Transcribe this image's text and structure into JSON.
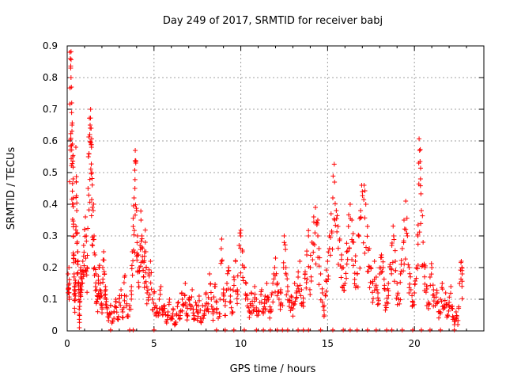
{
  "chart_data": {
    "type": "scatter",
    "title": "Day 249 of 2017, SRMTID for receiver babj",
    "xlabel": "GPS time / hours",
    "ylabel": "SRMTID / TECUs",
    "xlim": [
      0,
      24
    ],
    "ylim": [
      0,
      0.9
    ],
    "xticks": [
      0,
      5,
      10,
      15,
      20
    ],
    "yticks": [
      0,
      0.1,
      0.2,
      0.3,
      0.4,
      0.5,
      0.6,
      0.7,
      0.8,
      0.9
    ],
    "grid": true,
    "marker": "+",
    "series": [
      {
        "name": "SRMTID",
        "color": "#ff0000",
        "points": [
          [
            0.05,
            0.18
          ],
          [
            0.08,
            0.12
          ],
          [
            0.1,
            0.2
          ],
          [
            0.12,
            0.15
          ],
          [
            0.15,
            0.88
          ],
          [
            0.18,
            0.86
          ],
          [
            0.2,
            0.83
          ],
          [
            0.22,
            0.8
          ],
          [
            0.24,
            0.77
          ],
          [
            0.26,
            0.72
          ],
          [
            0.28,
            0.65
          ],
          [
            0.3,
            0.59
          ],
          [
            0.32,
            0.55
          ],
          [
            0.34,
            0.48
          ],
          [
            0.35,
            0.4
          ],
          [
            0.36,
            0.3
          ],
          [
            0.38,
            0.24
          ],
          [
            0.4,
            0.18
          ],
          [
            0.42,
            0.13
          ],
          [
            0.44,
            0.1
          ],
          [
            0.46,
            0.16
          ],
          [
            0.48,
            0.22
          ],
          [
            0.5,
            0.58
          ],
          [
            0.52,
            0.47
          ],
          [
            0.55,
            0.38
          ],
          [
            0.58,
            0.31
          ],
          [
            0.6,
            0.25
          ],
          [
            0.62,
            0.21
          ],
          [
            0.65,
            0.15
          ],
          [
            0.68,
            0.12
          ],
          [
            0.7,
            0.01
          ],
          [
            0.72,
            0.09
          ],
          [
            0.75,
            0.14
          ],
          [
            0.78,
            0.2
          ],
          [
            0.8,
            0.18
          ],
          [
            0.85,
            0.15
          ],
          [
            0.9,
            0.22
          ],
          [
            0.95,
            0.27
          ],
          [
            1.0,
            0.32
          ],
          [
            1.05,
            0.36
          ],
          [
            1.1,
            0.3
          ],
          [
            1.15,
            0.2
          ],
          [
            1.2,
            0.45
          ],
          [
            1.25,
            0.56
          ],
          [
            1.3,
            0.62
          ],
          [
            1.32,
            0.65
          ],
          [
            1.35,
            0.7
          ],
          [
            1.38,
            0.64
          ],
          [
            1.4,
            0.58
          ],
          [
            1.42,
            0.5
          ],
          [
            1.45,
            0.39
          ],
          [
            1.5,
            0.38
          ],
          [
            1.55,
            0.3
          ],
          [
            1.6,
            0.24
          ],
          [
            1.65,
            0.18
          ],
          [
            1.7,
            0.13
          ],
          [
            1.75,
            0.1
          ],
          [
            1.8,
            0.16
          ],
          [
            1.85,
            0.2
          ],
          [
            1.9,
            0.15
          ],
          [
            1.95,
            0.12
          ],
          [
            2.0,
            0.08
          ],
          [
            2.05,
            0.2
          ],
          [
            2.1,
            0.25
          ],
          [
            2.15,
            0.18
          ],
          [
            2.2,
            0.14
          ],
          [
            2.25,
            0.1
          ],
          [
            2.3,
            0.07
          ],
          [
            2.4,
            0.05
          ],
          [
            2.5,
            0.08
          ],
          [
            2.6,
            0.03
          ],
          [
            2.7,
            0.06
          ],
          [
            2.8,
            0.1
          ],
          [
            2.9,
            0.04
          ],
          [
            3.0,
            0.09
          ],
          [
            3.1,
            0.13
          ],
          [
            3.2,
            0.06
          ],
          [
            3.3,
            0.17
          ],
          [
            3.4,
            0.11
          ],
          [
            3.5,
            0.05
          ],
          [
            3.6,
            0.08
          ],
          [
            3.7,
            0.14
          ],
          [
            3.75,
            0.25
          ],
          [
            3.8,
            0.33
          ],
          [
            3.85,
            0.42
          ],
          [
            3.9,
            0.45
          ],
          [
            3.92,
            0.57
          ],
          [
            3.95,
            0.53
          ],
          [
            4.0,
            0.38
          ],
          [
            4.05,
            0.3
          ],
          [
            4.1,
            0.24
          ],
          [
            4.15,
            0.2
          ],
          [
            4.2,
            0.27
          ],
          [
            4.25,
            0.35
          ],
          [
            4.3,
            0.3
          ],
          [
            4.35,
            0.22
          ],
          [
            4.4,
            0.17
          ],
          [
            4.45,
            0.25
          ],
          [
            4.5,
            0.28
          ],
          [
            4.55,
            0.2
          ],
          [
            4.6,
            0.12
          ],
          [
            4.7,
            0.18
          ],
          [
            4.8,
            0.22
          ],
          [
            4.9,
            0.1
          ],
          [
            5.0,
            0.12
          ],
          [
            5.1,
            0.08
          ],
          [
            5.2,
            0.06
          ],
          [
            5.3,
            0.1
          ],
          [
            5.4,
            0.14
          ],
          [
            5.5,
            0.05
          ],
          [
            5.6,
            0.08
          ],
          [
            5.7,
            0.03
          ],
          [
            5.8,
            0.06
          ],
          [
            5.9,
            0.1
          ],
          [
            6.0,
            0.04
          ],
          [
            6.1,
            0.07
          ],
          [
            6.2,
            0.02
          ],
          [
            6.3,
            0.05
          ],
          [
            6.4,
            0.09
          ],
          [
            6.5,
            0.06
          ],
          [
            6.6,
            0.12
          ],
          [
            6.7,
            0.08
          ],
          [
            6.8,
            0.15
          ],
          [
            6.9,
            0.05
          ],
          [
            7.0,
            0.1
          ],
          [
            7.1,
            0.07
          ],
          [
            7.2,
            0.13
          ],
          [
            7.3,
            0.04
          ],
          [
            7.4,
            0.09
          ],
          [
            7.5,
            0.06
          ],
          [
            7.6,
            0.11
          ],
          [
            7.7,
            0.03
          ],
          [
            7.8,
            0.08
          ],
          [
            7.9,
            0.05
          ],
          [
            8.0,
            0.12
          ],
          [
            8.1,
            0.07
          ],
          [
            8.2,
            0.18
          ],
          [
            8.3,
            0.1
          ],
          [
            8.4,
            0.06
          ],
          [
            8.5,
            0.14
          ],
          [
            8.6,
            0.09
          ],
          [
            8.7,
            0.04
          ],
          [
            8.8,
            0.1
          ],
          [
            8.9,
            0.29
          ],
          [
            9.0,
            0.12
          ],
          [
            9.1,
            0.08
          ],
          [
            9.2,
            0.15
          ],
          [
            9.3,
            0.2
          ],
          [
            9.4,
            0.11
          ],
          [
            9.5,
            0.06
          ],
          [
            9.6,
            0.17
          ],
          [
            9.7,
            0.22
          ],
          [
            9.8,
            0.13
          ],
          [
            9.9,
            0.27
          ],
          [
            10.0,
            0.3
          ],
          [
            10.1,
            0.25
          ],
          [
            10.2,
            0.2
          ],
          [
            10.3,
            0.15
          ],
          [
            10.4,
            0.1
          ],
          [
            10.5,
            0.06
          ],
          [
            10.6,
            0.12
          ],
          [
            10.7,
            0.08
          ],
          [
            10.8,
            0.14
          ],
          [
            10.9,
            0.1
          ],
          [
            11.0,
            0.05
          ],
          [
            11.1,
            0.09
          ],
          [
            11.2,
            0.13
          ],
          [
            11.3,
            0.07
          ],
          [
            11.4,
            0.11
          ],
          [
            11.5,
            0.15
          ],
          [
            11.6,
            0.1
          ],
          [
            11.7,
            0.06
          ],
          [
            11.8,
            0.12
          ],
          [
            11.9,
            0.18
          ],
          [
            12.0,
            0.23
          ],
          [
            12.1,
            0.15
          ],
          [
            12.2,
            0.1
          ],
          [
            12.3,
            0.13
          ],
          [
            12.4,
            0.08
          ],
          [
            12.5,
            0.3
          ],
          [
            12.6,
            0.2
          ],
          [
            12.7,
            0.14
          ],
          [
            12.8,
            0.09
          ],
          [
            12.9,
            0.11
          ],
          [
            13.0,
            0.07
          ],
          [
            13.1,
            0.15
          ],
          [
            13.2,
            0.12
          ],
          [
            13.3,
            0.17
          ],
          [
            13.4,
            0.22
          ],
          [
            13.5,
            0.13
          ],
          [
            13.6,
            0.09
          ],
          [
            13.7,
            0.18
          ],
          [
            13.8,
            0.24
          ],
          [
            13.9,
            0.3
          ],
          [
            14.0,
            0.2
          ],
          [
            14.1,
            0.28
          ],
          [
            14.2,
            0.36
          ],
          [
            14.3,
            0.39
          ],
          [
            14.4,
            0.34
          ],
          [
            14.5,
            0.26
          ],
          [
            14.6,
            0.18
          ],
          [
            14.7,
            0.12
          ],
          [
            14.8,
            0.08
          ],
          [
            14.9,
            0.16
          ],
          [
            15.0,
            0.22
          ],
          [
            15.1,
            0.3
          ],
          [
            15.2,
            0.37
          ],
          [
            15.3,
            0.42
          ],
          [
            15.4,
            0.47
          ],
          [
            15.5,
            0.38
          ],
          [
            15.6,
            0.33
          ],
          [
            15.7,
            0.29
          ],
          [
            15.8,
            0.24
          ],
          [
            15.9,
            0.2
          ],
          [
            16.0,
            0.15
          ],
          [
            16.1,
            0.25
          ],
          [
            16.2,
            0.33
          ],
          [
            16.3,
            0.4
          ],
          [
            16.4,
            0.35
          ],
          [
            16.5,
            0.28
          ],
          [
            16.6,
            0.22
          ],
          [
            16.7,
            0.18
          ],
          [
            16.8,
            0.3
          ],
          [
            16.9,
            0.38
          ],
          [
            17.0,
            0.44
          ],
          [
            17.1,
            0.46
          ],
          [
            17.2,
            0.4
          ],
          [
            17.3,
            0.33
          ],
          [
            17.4,
            0.26
          ],
          [
            17.5,
            0.2
          ],
          [
            17.6,
            0.15
          ],
          [
            17.7,
            0.22
          ],
          [
            17.8,
            0.17
          ],
          [
            17.9,
            0.12
          ],
          [
            18.0,
            0.18
          ],
          [
            18.1,
            0.24
          ],
          [
            18.2,
            0.2
          ],
          [
            18.3,
            0.13
          ],
          [
            18.4,
            0.09
          ],
          [
            18.5,
            0.15
          ],
          [
            18.6,
            0.21
          ],
          [
            18.7,
            0.27
          ],
          [
            18.8,
            0.3
          ],
          [
            18.9,
            0.22
          ],
          [
            19.0,
            0.15
          ],
          [
            19.1,
            0.1
          ],
          [
            19.2,
            0.18
          ],
          [
            19.3,
            0.26
          ],
          [
            19.4,
            0.35
          ],
          [
            19.5,
            0.41
          ],
          [
            19.6,
            0.3
          ],
          [
            19.7,
            0.2
          ],
          [
            19.8,
            0.13
          ],
          [
            19.9,
            0.08
          ],
          [
            20.0,
            0.12
          ],
          [
            20.1,
            0.2
          ],
          [
            20.2,
            0.3
          ],
          [
            20.25,
            0.53
          ],
          [
            20.3,
            0.57
          ],
          [
            20.35,
            0.48
          ],
          [
            20.4,
            0.38
          ],
          [
            20.5,
            0.28
          ],
          [
            20.6,
            0.2
          ],
          [
            20.7,
            0.14
          ],
          [
            20.8,
            0.09
          ],
          [
            20.9,
            0.17
          ],
          [
            21.0,
            0.2
          ],
          [
            21.1,
            0.13
          ],
          [
            21.2,
            0.08
          ],
          [
            21.3,
            0.12
          ],
          [
            21.4,
            0.06
          ],
          [
            21.5,
            0.1
          ],
          [
            21.6,
            0.15
          ],
          [
            21.7,
            0.08
          ],
          [
            21.8,
            0.12
          ],
          [
            21.9,
            0.05
          ],
          [
            22.0,
            0.09
          ],
          [
            22.1,
            0.14
          ],
          [
            22.2,
            0.07
          ],
          [
            22.3,
            0.03
          ],
          [
            22.4,
            0.06
          ],
          [
            22.5,
            0.02
          ],
          [
            22.6,
            0.15
          ],
          [
            22.7,
            0.22
          ],
          [
            22.75,
            0.18
          ]
        ]
      }
    ],
    "baseline_points": [
      2.5,
      3.6,
      3.8,
      5.0,
      8.6,
      9.1,
      9.6,
      10.2,
      10.9,
      11.3,
      11.7,
      12.1,
      12.4,
      12.7,
      13.3,
      13.6,
      13.9,
      14.6,
      15.3,
      15.9,
      16.3,
      16.7,
      17.3,
      17.8,
      18.4,
      18.7,
      19.3,
      19.9,
      20.4,
      20.9,
      21.5,
      22.3
    ]
  }
}
